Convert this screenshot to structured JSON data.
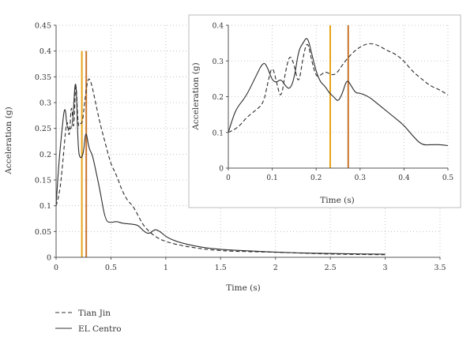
{
  "chart_data": [
    {
      "type": "line",
      "xlabel": "Time (s)",
      "ylabel": "Acceleration (g)",
      "xlim": [
        0,
        3.5
      ],
      "ylim": [
        0,
        0.45
      ],
      "xticks": [
        "0",
        "0.5",
        "1",
        "1.5",
        "2",
        "2.5",
        "3",
        "3.5"
      ],
      "yticks": [
        "0",
        "0.05",
        "0.1",
        "0.15",
        "0.2",
        "0.25",
        "0.3",
        "0.35",
        "0.4",
        "0.45"
      ],
      "grid": "dotted",
      "legend_position": "bottom-left",
      "vlines": [
        {
          "x": 0.235,
          "color": "#e8a317",
          "ymax": 0.4
        },
        {
          "x": 0.275,
          "color": "#c8742a",
          "ymax": 0.4
        }
      ],
      "series": [
        {
          "name": "Tian Jin",
          "style": "dashed",
          "x": [
            0,
            0.03,
            0.06,
            0.1,
            0.12,
            0.14,
            0.16,
            0.18,
            0.2,
            0.22,
            0.24,
            0.26,
            0.29,
            0.32,
            0.36,
            0.4,
            0.45,
            0.5,
            0.55,
            0.6,
            0.65,
            0.7,
            0.75,
            0.8,
            0.9,
            1.0,
            1.2,
            1.5,
            2.0,
            2.5,
            3.0
          ],
          "y": [
            0.1,
            0.12,
            0.18,
            0.28,
            0.22,
            0.31,
            0.23,
            0.36,
            0.25,
            0.26,
            0.26,
            0.3,
            0.35,
            0.34,
            0.3,
            0.26,
            0.22,
            0.18,
            0.16,
            0.13,
            0.11,
            0.1,
            0.08,
            0.06,
            0.04,
            0.03,
            0.02,
            0.012,
            0.01,
            0.006,
            0.005
          ]
        },
        {
          "name": "EL Centro",
          "style": "solid",
          "x": [
            0,
            0.02,
            0.05,
            0.08,
            0.1,
            0.12,
            0.15,
            0.18,
            0.2,
            0.22,
            0.25,
            0.27,
            0.3,
            0.33,
            0.36,
            0.4,
            0.45,
            0.5,
            0.55,
            0.6,
            0.65,
            0.7,
            0.75,
            0.8,
            0.85,
            0.9,
            0.95,
            1.0,
            1.1,
            1.3,
            1.5,
            1.8,
            2.0,
            2.3,
            2.6,
            3.0
          ],
          "y": [
            0.1,
            0.17,
            0.24,
            0.3,
            0.25,
            0.25,
            0.25,
            0.37,
            0.21,
            0.19,
            0.2,
            0.25,
            0.21,
            0.2,
            0.17,
            0.13,
            0.07,
            0.067,
            0.07,
            0.066,
            0.065,
            0.064,
            0.062,
            0.05,
            0.045,
            0.055,
            0.05,
            0.04,
            0.03,
            0.02,
            0.015,
            0.012,
            0.01,
            0.008,
            0.007,
            0.006
          ]
        }
      ]
    },
    {
      "type": "line",
      "role": "inset",
      "xlabel": "Time (s)",
      "ylabel": "Acceleration (g)",
      "xlim": [
        0,
        0.5
      ],
      "ylim": [
        0,
        0.4
      ],
      "xticks": [
        "0",
        "0.1",
        "0.2",
        "0.3",
        "0.4",
        "0.5"
      ],
      "yticks": [
        "0",
        "0.1",
        "0.2",
        "0.3",
        "0.4"
      ],
      "grid": "dotted",
      "vlines": [
        {
          "x": 0.232,
          "color": "#e8a317",
          "ymax": 0.4
        },
        {
          "x": 0.273,
          "color": "#c8742a",
          "ymax": 0.4
        }
      ],
      "series": [
        {
          "name": "Tian Jin",
          "style": "dashed",
          "x": [
            0,
            0.02,
            0.04,
            0.06,
            0.08,
            0.09,
            0.1,
            0.11,
            0.12,
            0.13,
            0.14,
            0.15,
            0.16,
            0.17,
            0.18,
            0.19,
            0.2,
            0.21,
            0.22,
            0.23,
            0.24,
            0.25,
            0.26,
            0.28,
            0.3,
            0.32,
            0.34,
            0.36,
            0.38,
            0.4,
            0.42,
            0.44,
            0.46,
            0.48,
            0.5
          ],
          "y": [
            0.1,
            0.11,
            0.14,
            0.16,
            0.18,
            0.24,
            0.29,
            0.24,
            0.19,
            0.27,
            0.32,
            0.29,
            0.23,
            0.31,
            0.36,
            0.3,
            0.255,
            0.26,
            0.27,
            0.265,
            0.26,
            0.27,
            0.29,
            0.32,
            0.34,
            0.35,
            0.345,
            0.33,
            0.32,
            0.3,
            0.27,
            0.25,
            0.23,
            0.22,
            0.205
          ]
        },
        {
          "name": "EL Centro",
          "style": "solid",
          "x": [
            0,
            0.01,
            0.02,
            0.04,
            0.06,
            0.08,
            0.09,
            0.1,
            0.11,
            0.12,
            0.13,
            0.14,
            0.15,
            0.16,
            0.17,
            0.18,
            0.19,
            0.2,
            0.21,
            0.22,
            0.23,
            0.24,
            0.25,
            0.26,
            0.27,
            0.28,
            0.29,
            0.3,
            0.32,
            0.34,
            0.36,
            0.38,
            0.4,
            0.42,
            0.44,
            0.46,
            0.48,
            0.5
          ],
          "y": [
            0.1,
            0.14,
            0.17,
            0.2,
            0.25,
            0.3,
            0.28,
            0.245,
            0.24,
            0.25,
            0.23,
            0.22,
            0.25,
            0.33,
            0.35,
            0.37,
            0.32,
            0.27,
            0.24,
            0.23,
            0.21,
            0.2,
            0.185,
            0.21,
            0.25,
            0.23,
            0.21,
            0.21,
            0.2,
            0.18,
            0.16,
            0.14,
            0.12,
            0.09,
            0.065,
            0.065,
            0.066,
            0.063
          ]
        }
      ]
    }
  ]
}
